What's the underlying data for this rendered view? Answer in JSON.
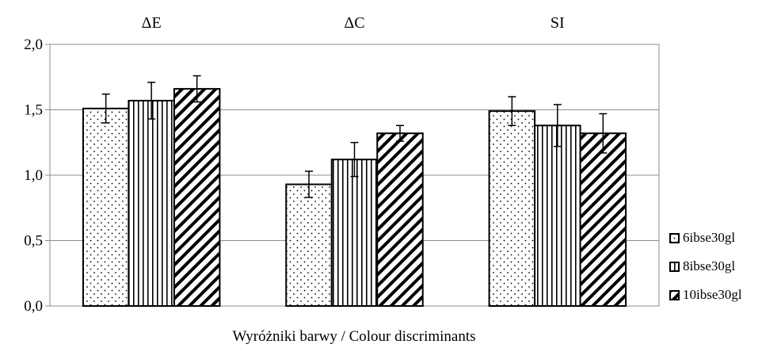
{
  "chart_data": {
    "type": "bar",
    "categories": [
      "ΔE",
      "ΔC",
      "SI"
    ],
    "series": [
      {
        "name": "6ibse30gl",
        "pattern": "dots",
        "values": [
          1.51,
          0.93,
          1.49
        ],
        "errors": [
          0.11,
          0.1,
          0.11
        ]
      },
      {
        "name": "8ibse30gl",
        "pattern": "vertical",
        "values": [
          1.57,
          1.12,
          1.38
        ],
        "errors": [
          0.14,
          0.13,
          0.16
        ]
      },
      {
        "name": "10ibse30gl",
        "pattern": "diagonal",
        "values": [
          1.66,
          1.32,
          1.32
        ],
        "errors": [
          0.1,
          0.06,
          0.15
        ]
      }
    ],
    "y_ticks": [
      "0,0",
      "0,5",
      "1,0",
      "1,5",
      "2,0"
    ],
    "ylim": [
      0,
      2
    ],
    "xlabel": "Wyróżniki barwy / Colour discriminants",
    "ylabel": "",
    "grid": true,
    "legend_position": "right-bottom",
    "colors": {
      "bar_fill": "#ffffff",
      "bar_stroke": "#000000",
      "grid": "#8c8c8c",
      "frame": "#8c8c8c"
    }
  }
}
